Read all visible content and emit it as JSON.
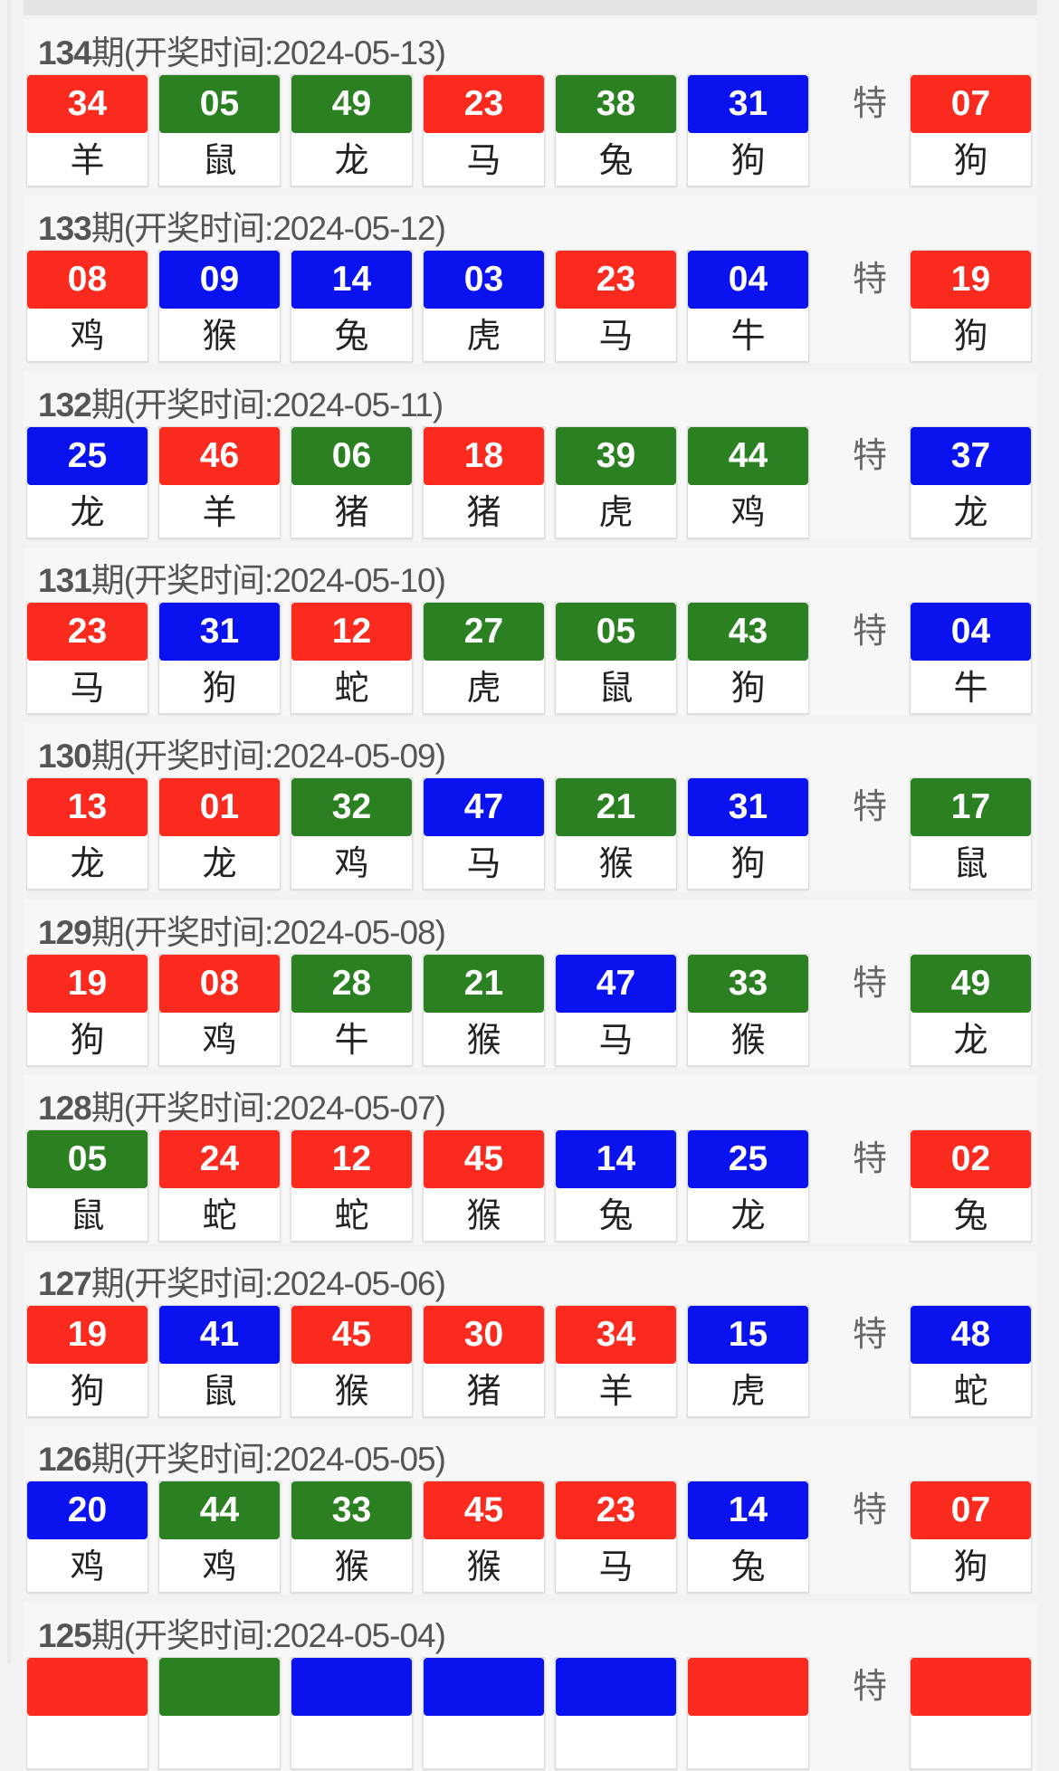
{
  "colors": {
    "red": "#fb2a1e",
    "green": "#2b8121",
    "blue": "#0b12f0"
  },
  "special_label": "特",
  "draws": [
    {
      "period": "134",
      "title_rest": "期(开奖时间:2024-05-13)",
      "balls": [
        [
          "34",
          "羊",
          "red"
        ],
        [
          "05",
          "鼠",
          "green"
        ],
        [
          "49",
          "龙",
          "green"
        ],
        [
          "23",
          "马",
          "red"
        ],
        [
          "38",
          "兔",
          "green"
        ],
        [
          "31",
          "狗",
          "blue"
        ]
      ],
      "special": [
        "07",
        "狗",
        "red"
      ]
    },
    {
      "period": "133",
      "title_rest": "期(开奖时间:2024-05-12)",
      "balls": [
        [
          "08",
          "鸡",
          "red"
        ],
        [
          "09",
          "猴",
          "blue"
        ],
        [
          "14",
          "兔",
          "blue"
        ],
        [
          "03",
          "虎",
          "blue"
        ],
        [
          "23",
          "马",
          "red"
        ],
        [
          "04",
          "牛",
          "blue"
        ]
      ],
      "special": [
        "19",
        "狗",
        "red"
      ]
    },
    {
      "period": "132",
      "title_rest": "期(开奖时间:2024-05-11)",
      "balls": [
        [
          "25",
          "龙",
          "blue"
        ],
        [
          "46",
          "羊",
          "red"
        ],
        [
          "06",
          "猪",
          "green"
        ],
        [
          "18",
          "猪",
          "red"
        ],
        [
          "39",
          "虎",
          "green"
        ],
        [
          "44",
          "鸡",
          "green"
        ]
      ],
      "special": [
        "37",
        "龙",
        "blue"
      ]
    },
    {
      "period": "131",
      "title_rest": "期(开奖时间:2024-05-10)",
      "balls": [
        [
          "23",
          "马",
          "red"
        ],
        [
          "31",
          "狗",
          "blue"
        ],
        [
          "12",
          "蛇",
          "red"
        ],
        [
          "27",
          "虎",
          "green"
        ],
        [
          "05",
          "鼠",
          "green"
        ],
        [
          "43",
          "狗",
          "green"
        ]
      ],
      "special": [
        "04",
        "牛",
        "blue"
      ]
    },
    {
      "period": "130",
      "title_rest": "期(开奖时间:2024-05-09)",
      "balls": [
        [
          "13",
          "龙",
          "red"
        ],
        [
          "01",
          "龙",
          "red"
        ],
        [
          "32",
          "鸡",
          "green"
        ],
        [
          "47",
          "马",
          "blue"
        ],
        [
          "21",
          "猴",
          "green"
        ],
        [
          "31",
          "狗",
          "blue"
        ]
      ],
      "special": [
        "17",
        "鼠",
        "green"
      ]
    },
    {
      "period": "129",
      "title_rest": "期(开奖时间:2024-05-08)",
      "balls": [
        [
          "19",
          "狗",
          "red"
        ],
        [
          "08",
          "鸡",
          "red"
        ],
        [
          "28",
          "牛",
          "green"
        ],
        [
          "21",
          "猴",
          "green"
        ],
        [
          "47",
          "马",
          "blue"
        ],
        [
          "33",
          "猴",
          "green"
        ]
      ],
      "special": [
        "49",
        "龙",
        "green"
      ]
    },
    {
      "period": "128",
      "title_rest": "期(开奖时间:2024-05-07)",
      "balls": [
        [
          "05",
          "鼠",
          "green"
        ],
        [
          "24",
          "蛇",
          "red"
        ],
        [
          "12",
          "蛇",
          "red"
        ],
        [
          "45",
          "猴",
          "red"
        ],
        [
          "14",
          "兔",
          "blue"
        ],
        [
          "25",
          "龙",
          "blue"
        ]
      ],
      "special": [
        "02",
        "兔",
        "red"
      ]
    },
    {
      "period": "127",
      "title_rest": "期(开奖时间:2024-05-06)",
      "balls": [
        [
          "19",
          "狗",
          "red"
        ],
        [
          "41",
          "鼠",
          "blue"
        ],
        [
          "45",
          "猴",
          "red"
        ],
        [
          "30",
          "猪",
          "red"
        ],
        [
          "34",
          "羊",
          "red"
        ],
        [
          "15",
          "虎",
          "blue"
        ]
      ],
      "special": [
        "48",
        "蛇",
        "blue"
      ]
    },
    {
      "period": "126",
      "title_rest": "期(开奖时间:2024-05-05)",
      "balls": [
        [
          "20",
          "鸡",
          "blue"
        ],
        [
          "44",
          "鸡",
          "green"
        ],
        [
          "33",
          "猴",
          "green"
        ],
        [
          "45",
          "猴",
          "red"
        ],
        [
          "23",
          "马",
          "red"
        ],
        [
          "14",
          "兔",
          "blue"
        ]
      ],
      "special": [
        "07",
        "狗",
        "red"
      ]
    },
    {
      "period": "125",
      "title_rest": "期(开奖时间:2024-05-04)",
      "balls": [
        [
          "",
          "",
          "red"
        ],
        [
          "",
          "",
          "green"
        ],
        [
          "",
          "",
          "blue"
        ],
        [
          "",
          "",
          "blue"
        ],
        [
          "",
          "",
          "blue"
        ],
        [
          "",
          "",
          "red"
        ]
      ],
      "special": [
        "",
        "",
        "red"
      ]
    }
  ]
}
